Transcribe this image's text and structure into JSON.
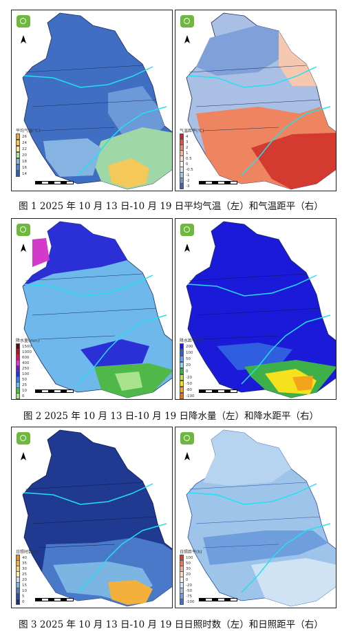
{
  "figures": [
    {
      "caption": "图 1    2025 年 10 月 13 日-10 月 19 日平均气温（左）和气温距平（右）",
      "left": {
        "legend_title": "平均气温(℃)",
        "legend": [
          {
            "label": "26",
            "color": "#f2a72f"
          },
          {
            "label": "24",
            "color": "#f7c65b"
          },
          {
            "label": "22",
            "color": "#fbe79b"
          },
          {
            "label": "20",
            "color": "#a8e0a2"
          },
          {
            "label": "18",
            "color": "#7fb3e0"
          },
          {
            "label": "16",
            "color": "#4f88cf"
          },
          {
            "label": "14",
            "color": "#2d5db6"
          }
        ]
      },
      "right": {
        "legend_title": "气温距平(℃)",
        "legend": [
          {
            "label": "4",
            "color": "#c9252b"
          },
          {
            "label": "3",
            "color": "#e0533c"
          },
          {
            "label": "2",
            "color": "#ee8460"
          },
          {
            "label": "1",
            "color": "#f7b797"
          },
          {
            "label": "0.5",
            "color": "#fbded0"
          },
          {
            "label": "0",
            "color": "#fff4ee"
          },
          {
            "label": "-0.5",
            "color": "#d6e2f2"
          },
          {
            "label": "-1",
            "color": "#a9c0e4"
          },
          {
            "label": "-2",
            "color": "#6f94cf"
          },
          {
            "label": "-3",
            "color": "#3e63b3"
          }
        ]
      }
    },
    {
      "caption": "图 2    2025 年 10 月 13 日-10 月 19 日降水量（左）和降水距平（右）",
      "left": {
        "legend_title": "降水量(mm)",
        "legend": [
          {
            "label": "1500",
            "color": "#5a0d14"
          },
          {
            "label": "1000",
            "color": "#a01b1b"
          },
          {
            "label": "600",
            "color": "#c7195e"
          },
          {
            "label": "400",
            "color": "#d23ac9"
          },
          {
            "label": "250",
            "color": "#6a1fb8"
          },
          {
            "label": "100",
            "color": "#2a2fd6"
          },
          {
            "label": "50",
            "color": "#3d7ae0"
          },
          {
            "label": "25",
            "color": "#6fb8ec"
          },
          {
            "label": "10",
            "color": "#4fb848"
          },
          {
            "label": "0",
            "color": "#a8e28c"
          }
        ]
      },
      "right": {
        "legend_title": "降水距平(%)",
        "legend": [
          {
            "label": "200",
            "color": "#1a1ad8"
          },
          {
            "label": "100",
            "color": "#2f5fe0"
          },
          {
            "label": "50",
            "color": "#5fa0ea"
          },
          {
            "label": "20",
            "color": "#8fd0ef"
          },
          {
            "label": "0",
            "color": "#3db04a"
          },
          {
            "label": "-20",
            "color": "#b7e24a"
          },
          {
            "label": "-50",
            "color": "#f5e11e"
          },
          {
            "label": "-80",
            "color": "#f4a41c"
          },
          {
            "label": "-100",
            "color": "#e8721b"
          }
        ]
      }
    },
    {
      "caption": "图 3    2025 年 10 月 13 日-10 月 19 日日照时数（左）和日照距平（右）",
      "left": {
        "legend_title": "日照时数(h)",
        "legend": [
          {
            "label": "40",
            "color": "#e8911a"
          },
          {
            "label": "35",
            "color": "#f3b13c"
          },
          {
            "label": "30",
            "color": "#f8d36a"
          },
          {
            "label": "25",
            "color": "#fbeea2"
          },
          {
            "label": "20",
            "color": "#bfe3f2"
          },
          {
            "label": "15",
            "color": "#7cb5e2"
          },
          {
            "label": "10",
            "color": "#4a79c9"
          },
          {
            "label": "5",
            "color": "#2a4ea8"
          },
          {
            "label": "0",
            "color": "#1b2f80"
          }
        ]
      },
      "right": {
        "legend_title": "日照距平(h)",
        "legend": [
          {
            "label": "100",
            "color": "#d9402c"
          },
          {
            "label": "50",
            "color": "#ee7a52"
          },
          {
            "label": "30",
            "color": "#f6ae8a"
          },
          {
            "label": "20",
            "color": "#fbd8c4"
          },
          {
            "label": "0",
            "color": "#f2f2f2"
          },
          {
            "label": "-20",
            "color": "#cfe3f4"
          },
          {
            "label": "-50",
            "color": "#9fc4ea"
          },
          {
            "label": "-75",
            "color": "#6e9ede"
          },
          {
            "label": "-100",
            "color": "#3f73c8"
          }
        ]
      }
    }
  ]
}
